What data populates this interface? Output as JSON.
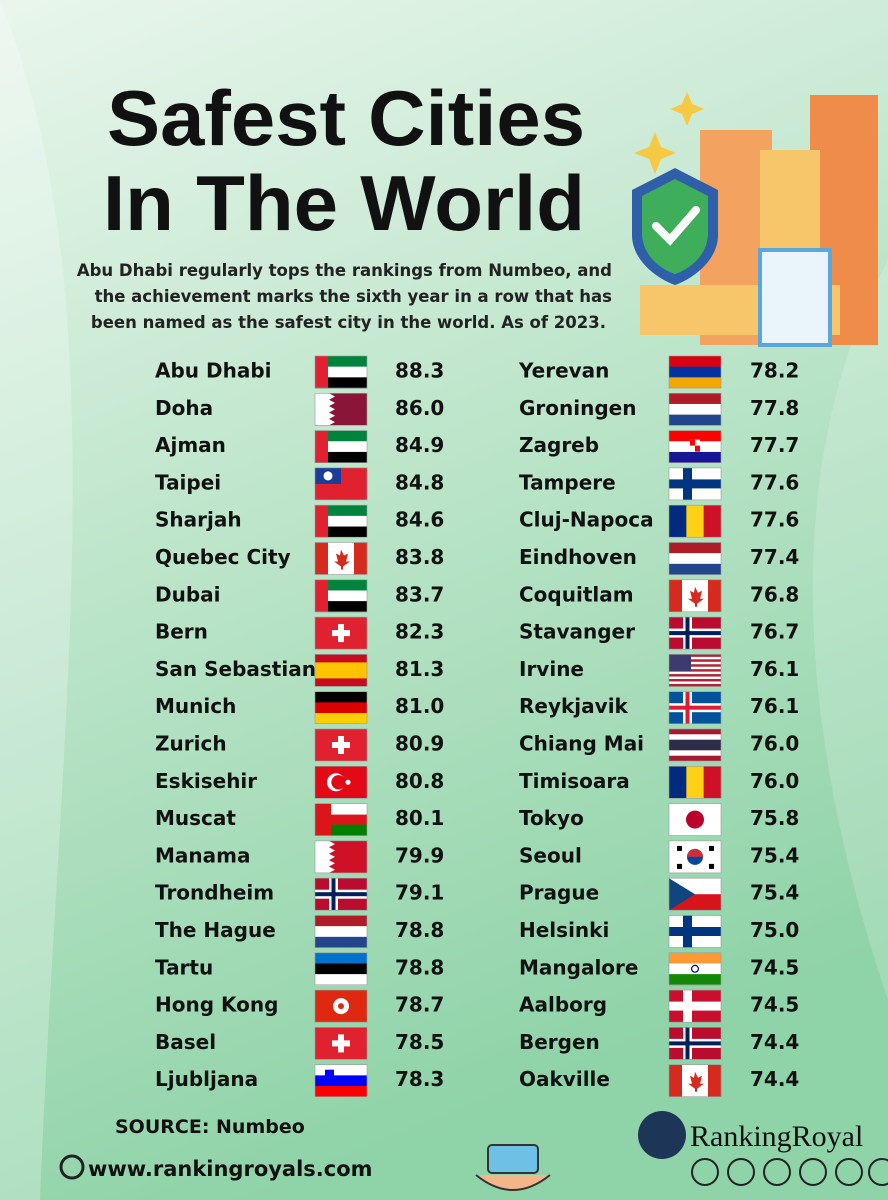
{
  "title_lines": [
    "Safest Cities",
    "In The World"
  ],
  "subtitle_lines": [
    "Abu Dhabi regularly tops the rankings from Numbeo, and",
    "the achievement marks the sixth year in a row that has",
    "been named as the safest city in the world. As of 2023."
  ],
  "columns": [
    {
      "rows": [
        {
          "city": "Abu Dhabi",
          "score": "88.3"
        },
        {
          "city": "Doha",
          "score": "86.0"
        },
        {
          "city": "Ajman",
          "score": "84.9"
        },
        {
          "city": "Taipei",
          "score": "84.8"
        },
        {
          "city": "Sharjah",
          "score": "84.6"
        },
        {
          "city": "Quebec City",
          "score": "83.8"
        },
        {
          "city": "Dubai",
          "score": "83.7"
        },
        {
          "city": "Bern",
          "score": "82.3"
        },
        {
          "city": "San Sebastian",
          "score": "81.3"
        },
        {
          "city": "Munich",
          "score": "81.0"
        },
        {
          "city": "Zurich",
          "score": "80.9"
        },
        {
          "city": "Eskisehir",
          "score": "80.8"
        },
        {
          "city": "Muscat",
          "score": "80.1"
        },
        {
          "city": "Manama",
          "score": "79.9"
        },
        {
          "city": "Trondheim",
          "score": "79.1"
        },
        {
          "city": "The Hague",
          "score": "78.8"
        },
        {
          "city": "Tartu",
          "score": "78.8"
        },
        {
          "city": "Hong Kong",
          "score": "78.7"
        },
        {
          "city": "Basel",
          "score": "78.5"
        },
        {
          "city": "Ljubljana",
          "score": "78.3"
        }
      ]
    },
    {
      "rows": [
        {
          "city": "Yerevan",
          "score": "78.2"
        },
        {
          "city": "Groningen",
          "score": "77.8"
        },
        {
          "city": "Zagreb",
          "score": "77.7"
        },
        {
          "city": "Tampere",
          "score": "77.6"
        },
        {
          "city": "Cluj-Napoca",
          "score": "77.6"
        },
        {
          "city": "Eindhoven",
          "score": "77.4"
        },
        {
          "city": "Coquitlam",
          "score": "76.8"
        },
        {
          "city": "Stavanger",
          "score": "76.7"
        },
        {
          "city": "Irvine",
          "score": "76.1"
        },
        {
          "city": "Reykjavik",
          "score": "76.1"
        },
        {
          "city": "Chiang Mai",
          "score": "76.0"
        },
        {
          "city": "Timisoara",
          "score": "76.0"
        },
        {
          "city": "Tokyo",
          "score": "75.8"
        },
        {
          "city": "Seoul",
          "score": "75.4"
        },
        {
          "city": "Prague",
          "score": "75.4"
        },
        {
          "city": "Helsinki",
          "score": "75.0"
        },
        {
          "city": "Mangalore",
          "score": "74.5"
        },
        {
          "city": "Aalborg",
          "score": "74.5"
        },
        {
          "city": "Bergen",
          "score": "74.4"
        },
        {
          "city": "Oakville",
          "score": "74.4"
        }
      ]
    }
  ],
  "source": "SOURCE: Numbeo",
  "website": "www.rankingroyals.com",
  "brand": "RankingRoyal"
}
